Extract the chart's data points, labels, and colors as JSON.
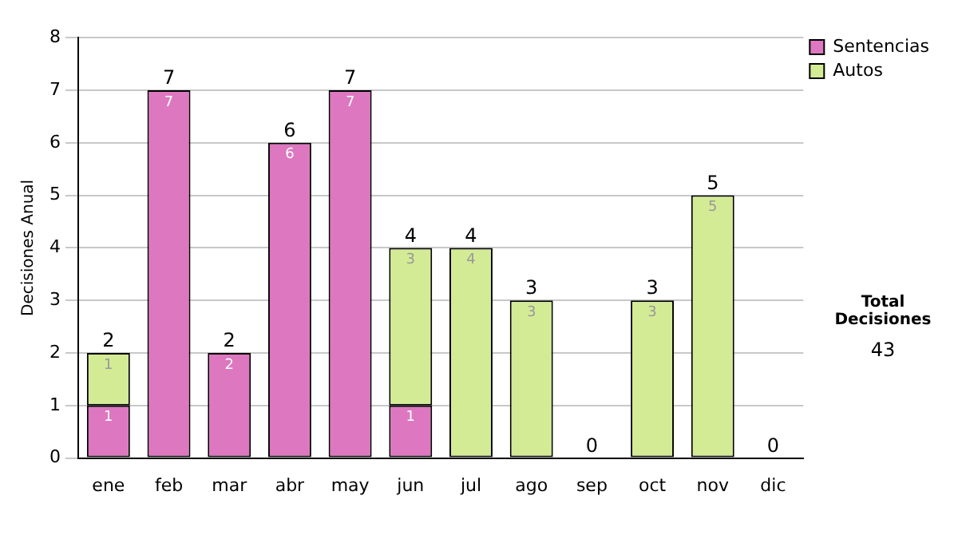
{
  "chart_data": {
    "type": "bar",
    "stacked": true,
    "ylabel": "Decisiones Anual",
    "categories": [
      "ene",
      "feb",
      "mar",
      "abr",
      "may",
      "jun",
      "jul",
      "ago",
      "sep",
      "oct",
      "nov",
      "dic"
    ],
    "series": [
      {
        "name": "Sentencias",
        "color": "#dd77c0",
        "values": [
          1,
          7,
          2,
          6,
          7,
          1,
          0,
          0,
          0,
          0,
          0,
          0
        ],
        "value_labels": [
          "1",
          "7",
          "2",
          "6",
          "7",
          "1",
          null,
          null,
          null,
          null,
          null,
          null
        ]
      },
      {
        "name": "Autos",
        "color": "#d4eb96",
        "values": [
          1,
          0,
          0,
          0,
          0,
          3,
          4,
          3,
          0,
          3,
          5,
          0
        ],
        "value_labels": [
          "1",
          null,
          null,
          null,
          null,
          "3",
          "4",
          "3",
          null,
          "3",
          "5",
          null
        ]
      }
    ],
    "totals": [
      "2",
      "7",
      "2",
      "6",
      "7",
      "4",
      "4",
      "3",
      "0",
      "3",
      "5",
      "0"
    ],
    "ylim": [
      0,
      8
    ],
    "yticks": [
      0,
      1,
      2,
      3,
      4,
      5,
      6,
      7,
      8
    ],
    "grid": "y",
    "legend": "right",
    "annotations": [
      "Total Decisiones",
      "43"
    ]
  }
}
